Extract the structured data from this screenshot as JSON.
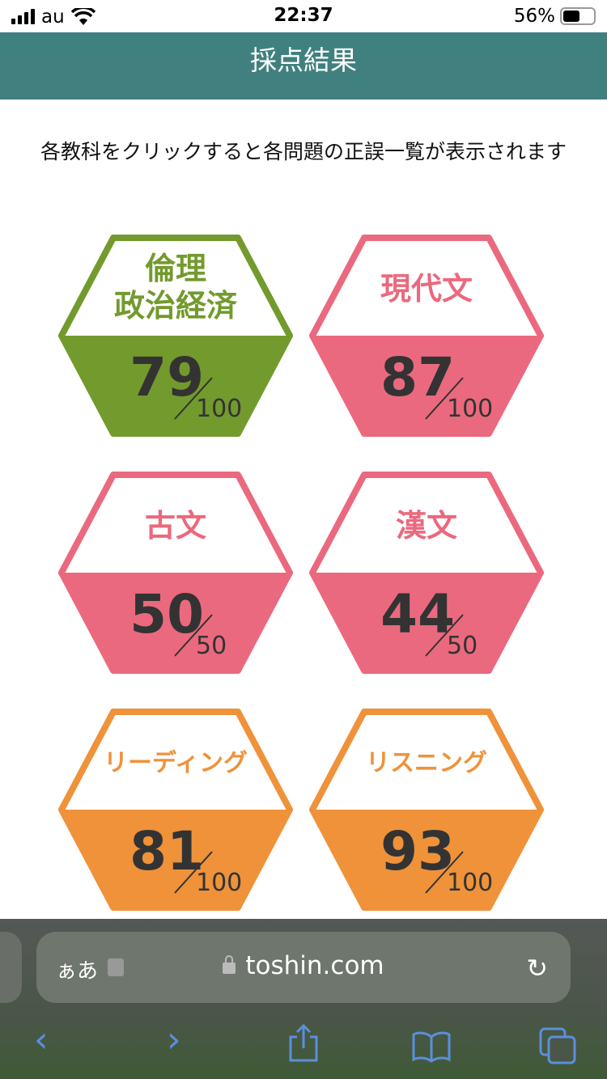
{
  "status_bar": {
    "carrier": "au",
    "time": "22:37",
    "battery": "56%",
    "battery_level": 0.56
  },
  "header": {
    "title": "採点結果"
  },
  "instruction": "各教科をクリックすると各問題の正誤一覧が表示されます",
  "subjects": [
    {
      "name": "倫理\n政治経済",
      "line1": "倫理",
      "line2": "政治経済",
      "score": "79",
      "max": "100",
      "color": "#739a2d"
    },
    {
      "name": "現代文",
      "score": "87",
      "max": "100",
      "color": "#eb697e"
    },
    {
      "name": "古文",
      "score": "50",
      "max": "50",
      "color": "#eb697e"
    },
    {
      "name": "漢文",
      "score": "44",
      "max": "50",
      "color": "#eb697e"
    },
    {
      "name": "リーディング",
      "score": "81",
      "max": "100",
      "color": "#ef923a"
    },
    {
      "name": "リスニング",
      "score": "93",
      "max": "100",
      "color": "#ef923a"
    }
  ],
  "browser": {
    "text_size_label": "ぁあ",
    "url": "toshin.com",
    "icons": [
      "back",
      "forward",
      "share",
      "bookmarks",
      "tabs"
    ]
  }
}
